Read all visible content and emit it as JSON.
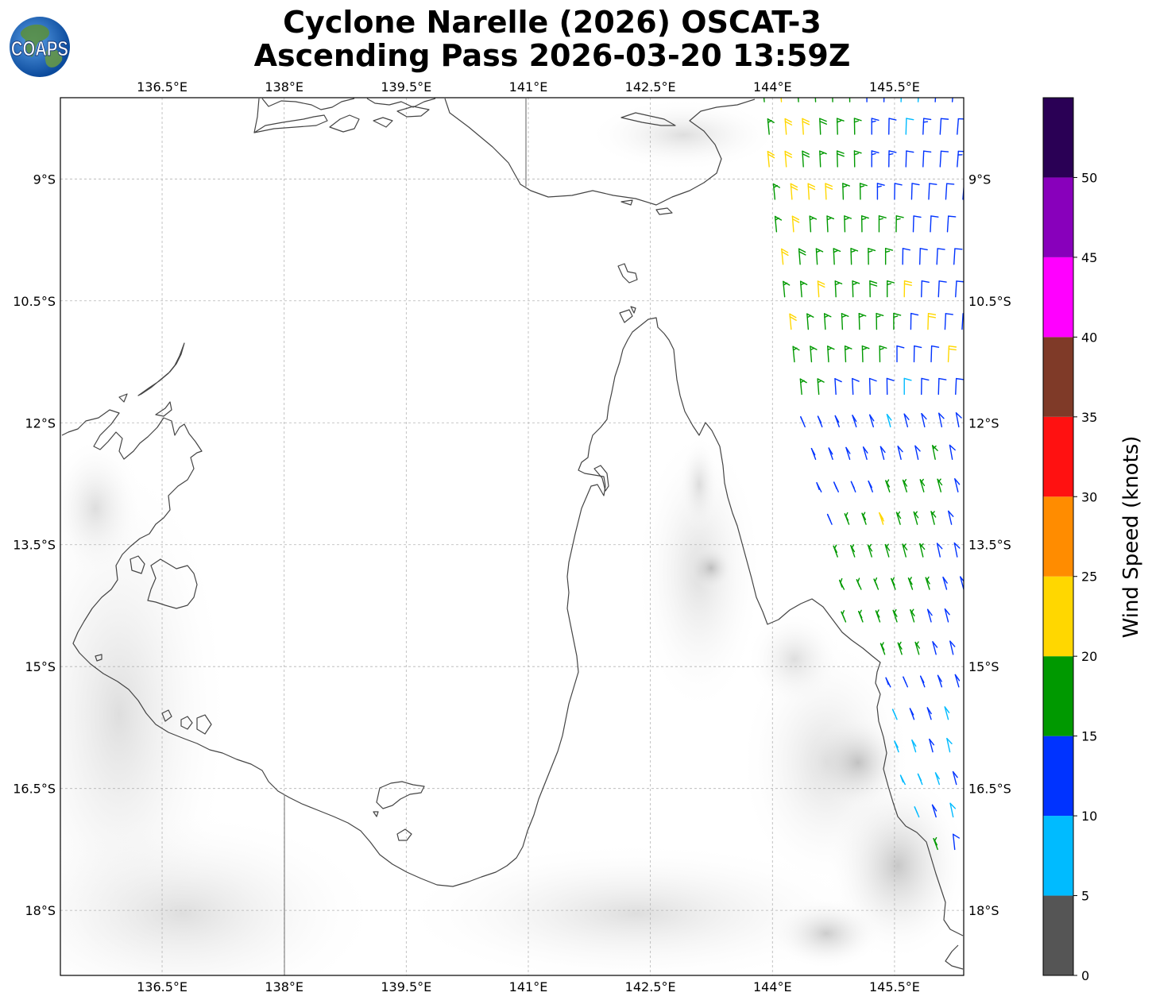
{
  "header": {
    "title_line1": "Cyclone Narelle (2026) OSCAT-3",
    "title_line2": "Ascending Pass 2026-03-20 13:59Z",
    "logo_text": "COAPS"
  },
  "map": {
    "lon_labels": [
      "136.5°E",
      "138°E",
      "139.5°E",
      "141°E",
      "142.5°E",
      "144°E",
      "145.5°E"
    ],
    "lat_labels": [
      "9°S",
      "10.5°S",
      "12°S",
      "13.5°S",
      "15°S",
      "16.5°S",
      "18°S"
    ],
    "lon_values": [
      136.5,
      138,
      139.5,
      141,
      142.5,
      144,
      145.5
    ],
    "lat_values": [
      -9,
      -10.5,
      -12,
      -13.5,
      -15,
      -16.5,
      -18
    ],
    "extent": {
      "lon": [
        135.25,
        146.35
      ],
      "lat": [
        -18.8,
        -8.0
      ]
    },
    "grid": true
  },
  "colorbar": {
    "label": "Wind Speed (knots)",
    "ticks": [
      "0",
      "5",
      "10",
      "15",
      "20",
      "25",
      "30",
      "35",
      "40",
      "45",
      "50"
    ],
    "bins": [
      {
        "min": 0,
        "max": 5,
        "color": "#555555"
      },
      {
        "min": 5,
        "max": 10,
        "color": "#00bbff"
      },
      {
        "min": 10,
        "max": 15,
        "color": "#0033ff"
      },
      {
        "min": 15,
        "max": 20,
        "color": "#009900"
      },
      {
        "min": 20,
        "max": 25,
        "color": "#ffd700"
      },
      {
        "min": 25,
        "max": 30,
        "color": "#ff8c00"
      },
      {
        "min": 30,
        "max": 35,
        "color": "#ff1111"
      },
      {
        "min": 35,
        "max": 40,
        "color": "#7f3a28"
      },
      {
        "min": 40,
        "max": 45,
        "color": "#ff00ff"
      },
      {
        "min": 45,
        "max": 50,
        "color": "#8800bb"
      },
      {
        "min": 50,
        "max": 55,
        "color": "#2a0055"
      }
    ],
    "range": [
      0,
      55
    ]
  },
  "wind_swath": {
    "description_units": "knots",
    "rows": [
      {
        "lat": -8.05,
        "lon0": 143.9,
        "speeds": [
          17,
          22,
          18,
          15,
          17,
          15,
          13,
          12,
          9,
          8,
          12,
          12,
          13
        ]
      },
      {
        "lat": -8.45,
        "lon0": 143.93,
        "speeds": [
          16,
          22,
          20,
          18,
          17,
          16,
          13,
          12,
          9,
          13,
          12,
          12,
          12
        ]
      },
      {
        "lat": -8.85,
        "lon0": 143.96,
        "speeds": [
          22,
          21,
          18,
          17,
          18,
          16,
          14,
          13,
          12,
          12,
          12,
          13,
          9
        ]
      },
      {
        "lat": -9.25,
        "lon0": 144.0,
        "speeds": [
          17,
          22,
          20,
          22,
          17,
          16,
          14,
          12,
          12,
          12,
          12,
          12,
          9
        ]
      },
      {
        "lat": -9.65,
        "lon0": 144.05,
        "speeds": [
          16,
          22,
          17,
          16,
          17,
          16,
          16,
          15,
          12,
          12,
          12,
          12,
          12
        ]
      },
      {
        "lat": -10.05,
        "lon0": 144.1,
        "speeds": [
          22,
          18,
          17,
          16,
          17,
          17,
          15,
          12,
          12,
          12,
          12,
          12,
          12
        ]
      },
      {
        "lat": -10.45,
        "lon0": 144.15,
        "speeds": [
          17,
          16,
          22,
          17,
          16,
          18,
          15,
          21,
          12,
          12,
          12,
          12,
          12
        ]
      },
      {
        "lat": -10.85,
        "lon0": 144.2,
        "speeds": [
          22,
          17,
          16,
          17,
          16,
          17,
          15,
          12,
          21,
          12,
          12,
          12,
          12
        ]
      },
      {
        "lat": -11.25,
        "lon0": 144.27,
        "speeds": [
          17,
          16,
          16,
          17,
          16,
          16,
          12,
          12,
          12,
          22,
          12,
          12,
          12
        ]
      },
      {
        "lat": -11.65,
        "lon0": 144.33,
        "speeds": [
          16,
          16,
          12,
          12,
          12,
          12,
          9,
          12,
          12,
          12,
          12,
          12,
          12
        ]
      },
      {
        "lat": -12.05,
        "lon0": 144.4,
        "speeds": [
          12,
          12,
          12,
          12,
          12,
          9,
          12,
          12,
          12,
          12,
          12,
          12,
          12
        ]
      },
      {
        "lat": -12.45,
        "lon0": 144.5,
        "speeds": [
          12,
          12,
          12,
          12,
          12,
          12,
          12,
          16,
          12,
          12,
          12,
          12,
          12
        ]
      },
      {
        "lat": -12.85,
        "lon0": 144.6,
        "speeds": [
          12,
          12,
          12,
          12,
          16,
          16,
          16,
          16,
          12,
          12,
          12,
          12,
          12
        ]
      },
      {
        "lat": -13.25,
        "lon0": 144.7,
        "speeds": [
          12,
          16,
          16,
          22,
          16,
          17,
          16,
          12,
          12,
          12,
          12,
          12,
          12
        ]
      },
      {
        "lat": -13.65,
        "lon0": 144.8,
        "speeds": [
          16,
          16,
          17,
          16,
          17,
          16,
          12,
          12,
          12,
          12,
          12,
          12,
          12
        ]
      },
      {
        "lat": -14.05,
        "lon0": 144.85,
        "speeds": [
          16,
          17,
          16,
          16,
          17,
          16,
          12,
          12,
          12,
          12,
          12,
          12,
          12
        ]
      },
      {
        "lat": -14.45,
        "lon0": 144.9,
        "speeds": [
          17,
          16,
          16,
          17,
          16,
          12,
          12,
          12,
          12,
          12,
          12,
          12,
          17
        ]
      },
      {
        "lat": -14.85,
        "lon0": 145.35,
        "speeds": [
          16,
          17,
          16,
          12,
          12,
          12,
          12,
          12,
          12,
          12
        ]
      },
      {
        "lat": -15.25,
        "lon0": 145.45,
        "speeds": [
          12,
          12,
          12,
          12,
          12,
          12,
          12,
          12,
          12
        ]
      },
      {
        "lat": -15.65,
        "lon0": 145.5,
        "speeds": [
          9,
          12,
          12,
          9,
          12,
          12,
          12,
          12
        ]
      },
      {
        "lat": -16.05,
        "lon0": 145.55,
        "speeds": [
          9,
          9,
          12,
          9,
          12,
          9,
          12
        ]
      },
      {
        "lat": -16.45,
        "lon0": 145.6,
        "speeds": [
          9,
          9,
          9,
          12,
          9,
          9
        ]
      },
      {
        "lat": -16.85,
        "lon0": 145.8,
        "speeds": [
          9,
          12,
          9,
          12
        ]
      },
      {
        "lat": -17.25,
        "lon0": 146.0,
        "speeds": [
          16,
          12
        ]
      }
    ]
  }
}
